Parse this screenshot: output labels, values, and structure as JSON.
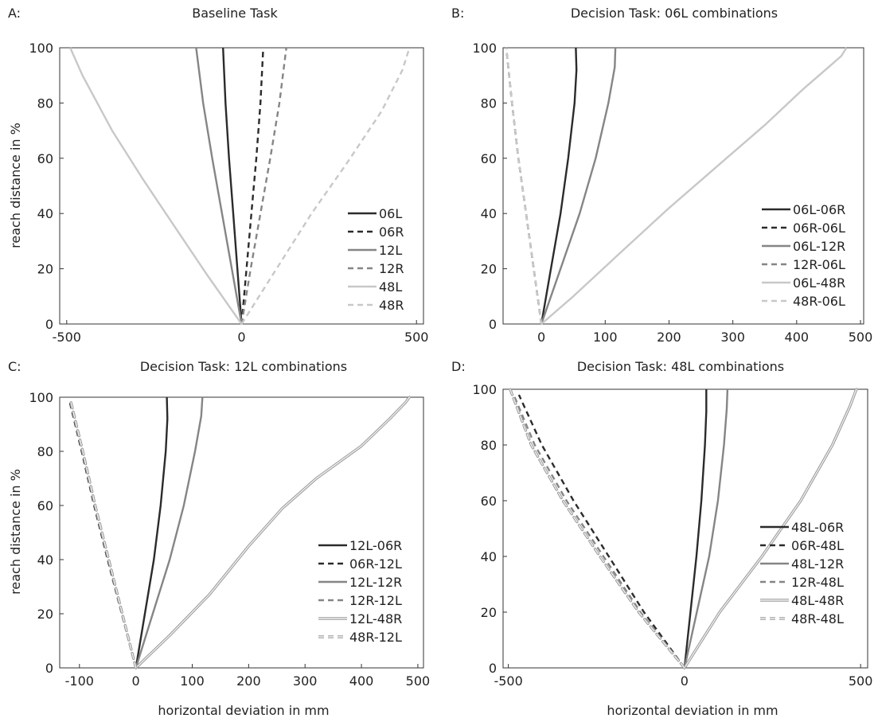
{
  "figure": {
    "shared_xlabel": "horizontal deviation in mm",
    "shared_ylabel": "reach distance in %"
  },
  "chart_data": [
    {
      "id": "A",
      "type": "line",
      "panel_letter": "A:",
      "title": "Baseline Task",
      "xlabel": "",
      "ylabel": "reach distance in %",
      "xlim": [
        -520,
        520
      ],
      "ylim": [
        0,
        100
      ],
      "xticks": [
        -500,
        0,
        500
      ],
      "yticks": [
        0,
        20,
        40,
        60,
        80,
        100
      ],
      "legend_position": "bottom-right",
      "series": [
        {
          "name": "06L",
          "color": "#2b2b2b",
          "dash": "solid",
          "x": [
            0,
            -12,
            -24,
            -36,
            -46,
            -53
          ],
          "y": [
            0,
            20,
            40,
            60,
            80,
            100
          ]
        },
        {
          "name": "06R",
          "color": "#2b2b2b",
          "dash": "dashed",
          "x": [
            0,
            14,
            28,
            42,
            54,
            62
          ],
          "y": [
            0,
            20,
            40,
            60,
            80,
            100
          ]
        },
        {
          "name": "12L",
          "color": "#858585",
          "dash": "solid",
          "x": [
            0,
            -28,
            -56,
            -84,
            -110,
            -130
          ],
          "y": [
            0,
            20,
            40,
            60,
            80,
            100
          ]
        },
        {
          "name": "12R",
          "color": "#858585",
          "dash": "dashed",
          "x": [
            0,
            26,
            54,
            82,
            108,
            128
          ],
          "y": [
            0,
            20,
            40,
            60,
            80,
            100
          ]
        },
        {
          "name": "48L",
          "color": "#c8c8c8",
          "dash": "solid",
          "x": [
            0,
            -100,
            -190,
            -280,
            -370,
            -455,
            -490
          ],
          "y": [
            0,
            18,
            35,
            52,
            70,
            90,
            100
          ]
        },
        {
          "name": "48R",
          "color": "#c8c8c8",
          "dash": "dashed",
          "x": [
            0,
            100,
            200,
            300,
            400,
            460,
            480
          ],
          "y": [
            0,
            20,
            40,
            58,
            77,
            92,
            100
          ]
        }
      ]
    },
    {
      "id": "B",
      "type": "line",
      "panel_letter": "B:",
      "title": "Decision Task: 06L combinations",
      "xlabel": "",
      "ylabel": "",
      "xlim": [
        -60,
        505
      ],
      "ylim": [
        0,
        100
      ],
      "xticks": [
        0,
        100,
        200,
        300,
        400,
        500
      ],
      "yticks": [
        0,
        20,
        40,
        60,
        80,
        100
      ],
      "legend_position": "bottom-right",
      "series": [
        {
          "name": "06L-06R",
          "color": "#2b2b2b",
          "dash": "solid",
          "x": [
            0,
            15,
            30,
            42,
            52,
            55,
            54
          ],
          "y": [
            0,
            20,
            40,
            60,
            80,
            92,
            100
          ]
        },
        {
          "name": "06R-06L",
          "color": "#2b2b2b",
          "dash": "dashed",
          "x": [
            0,
            -12,
            -24,
            -36,
            -46,
            -55
          ],
          "y": [
            0,
            20,
            40,
            60,
            80,
            100
          ]
        },
        {
          "name": "06L-12R",
          "color": "#858585",
          "dash": "solid",
          "x": [
            0,
            30,
            60,
            85,
            105,
            115,
            116
          ],
          "y": [
            0,
            20,
            40,
            60,
            80,
            93,
            100
          ]
        },
        {
          "name": "12R-06L",
          "color": "#858585",
          "dash": "dashed",
          "x": [
            0,
            -12,
            -24,
            -36,
            -46,
            -55
          ],
          "y": [
            0,
            20,
            40,
            60,
            80,
            100
          ]
        },
        {
          "name": "06L-48R",
          "color": "#c8c8c8",
          "dash": "solid",
          "x": [
            0,
            50,
            120,
            200,
            280,
            350,
            410,
            450,
            470,
            478
          ],
          "y": [
            0,
            10,
            25,
            42,
            58,
            72,
            85,
            93,
            97,
            100
          ]
        },
        {
          "name": "48R-06L",
          "color": "#c8c8c8",
          "dash": "dashed",
          "x": [
            0,
            -12,
            -24,
            -36,
            -46,
            -55
          ],
          "y": [
            0,
            20,
            40,
            60,
            80,
            100
          ]
        }
      ]
    },
    {
      "id": "C",
      "type": "line",
      "panel_letter": "C:",
      "title": "Decision Task: 12L combinations",
      "xlabel": "horizontal deviation in mm",
      "ylabel": "reach distance in %",
      "xlim": [
        -135,
        510
      ],
      "ylim": [
        0,
        100
      ],
      "xticks": [
        -100,
        0,
        100,
        200,
        300,
        400,
        500
      ],
      "yticks": [
        0,
        20,
        40,
        60,
        80,
        100
      ],
      "legend_position": "bottom-right",
      "series": [
        {
          "name": "12L-06R",
          "color": "#2b2b2b",
          "dash": "solid",
          "x": [
            0,
            16,
            32,
            44,
            53,
            56,
            55
          ],
          "y": [
            0,
            20,
            40,
            60,
            80,
            92,
            100
          ]
        },
        {
          "name": "06R-12L",
          "color": "#2b2b2b",
          "dash": "dashed",
          "x": [
            0,
            -25,
            -50,
            -74,
            -96,
            -117
          ],
          "y": [
            0,
            20,
            40,
            60,
            80,
            98
          ]
        },
        {
          "name": "12L-12R",
          "color": "#858585",
          "dash": "solid",
          "x": [
            0,
            30,
            60,
            85,
            105,
            116,
            118
          ],
          "y": [
            0,
            20,
            40,
            60,
            80,
            93,
            100
          ]
        },
        {
          "name": "12R-12L",
          "color": "#858585",
          "dash": "dashed",
          "x": [
            0,
            -24,
            -49,
            -73,
            -95,
            -116
          ],
          "y": [
            0,
            20,
            40,
            60,
            80,
            98
          ]
        },
        {
          "name": "12L-48R",
          "color": "#c8c8c8",
          "dash": "double",
          "x": [
            0,
            60,
            130,
            200,
            260,
            320,
            400,
            450,
            478,
            485
          ],
          "y": [
            0,
            12,
            27,
            45,
            59,
            70,
            82,
            92,
            98,
            100
          ]
        },
        {
          "name": "48R-12L",
          "color": "#c8c8c8",
          "dash": "double-dashed",
          "x": [
            0,
            -24,
            -48,
            -72,
            -94,
            -115
          ],
          "y": [
            0,
            20,
            40,
            60,
            80,
            98
          ]
        }
      ]
    },
    {
      "id": "D",
      "type": "line",
      "panel_letter": "D:",
      "title": "Decision Task: 48L combinations",
      "xlabel": "horizontal deviation in mm",
      "ylabel": "",
      "xlim": [
        -515,
        520
      ],
      "ylim": [
        0,
        100
      ],
      "xticks": [
        -500,
        0,
        500
      ],
      "yticks": [
        0,
        20,
        40,
        60,
        80,
        100
      ],
      "legend_position": "bottom-right",
      "series": [
        {
          "name": "48L-06R",
          "color": "#2b2b2b",
          "dash": "solid",
          "x": [
            0,
            17,
            34,
            48,
            58,
            62,
            62
          ],
          "y": [
            0,
            20,
            40,
            60,
            80,
            92,
            100
          ]
        },
        {
          "name": "06R-48L",
          "color": "#2b2b2b",
          "dash": "dashed",
          "x": [
            0,
            -115,
            -215,
            -315,
            -405,
            -470
          ],
          "y": [
            0,
            20,
            40,
            60,
            80,
            98
          ]
        },
        {
          "name": "48L-12R",
          "color": "#858585",
          "dash": "solid",
          "x": [
            0,
            35,
            70,
            95,
            112,
            120,
            122
          ],
          "y": [
            0,
            20,
            40,
            60,
            80,
            93,
            100
          ]
        },
        {
          "name": "12R-48L",
          "color": "#858585",
          "dash": "dashed",
          "x": [
            0,
            -125,
            -230,
            -335,
            -425,
            -485
          ],
          "y": [
            0,
            20,
            40,
            60,
            80,
            98
          ]
        },
        {
          "name": "48L-48R",
          "color": "#c8c8c8",
          "dash": "double",
          "x": [
            0,
            100,
            220,
            330,
            420,
            470,
            488
          ],
          "y": [
            0,
            20,
            40,
            60,
            80,
            94,
            100
          ]
        },
        {
          "name": "48R-48L",
          "color": "#c8c8c8",
          "dash": "double-dashed",
          "x": [
            0,
            -130,
            -240,
            -345,
            -435,
            -495
          ],
          "y": [
            0,
            20,
            40,
            60,
            80,
            100
          ]
        }
      ]
    }
  ]
}
